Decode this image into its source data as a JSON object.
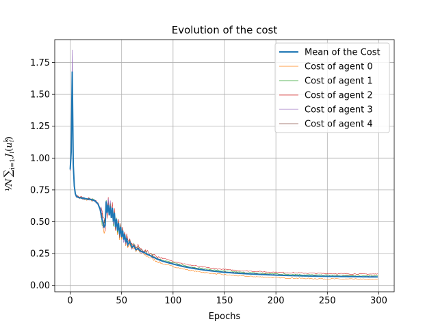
{
  "chart_data": {
    "type": "line",
    "title": "Evolution of the cost",
    "xlabel": "Epochs",
    "ylabel": "1/N Σ_{i=1} J_i(u_i^k)",
    "xlim": [
      -15,
      315
    ],
    "ylim": [
      -0.05,
      1.93
    ],
    "xticks": [
      0,
      50,
      100,
      150,
      200,
      250,
      300
    ],
    "yticks": [
      0.0,
      0.25,
      0.5,
      0.75,
      1.0,
      1.25,
      1.5,
      1.75
    ],
    "ytick_labels": [
      "0.00",
      "0.25",
      "0.50",
      "0.75",
      "1.00",
      "1.25",
      "1.50",
      "1.75"
    ],
    "grid": true,
    "legend_position": "top-right",
    "mean_series": {
      "name": "Mean of the Cost",
      "color": "#1f77b4",
      "points": [
        [
          0,
          0.91
        ],
        [
          1,
          1.05
        ],
        [
          2,
          1.68
        ],
        [
          3,
          0.95
        ],
        [
          4,
          0.78
        ],
        [
          5,
          0.72
        ],
        [
          6,
          0.7
        ],
        [
          8,
          0.69
        ],
        [
          12,
          0.685
        ],
        [
          16,
          0.68
        ],
        [
          20,
          0.675
        ],
        [
          24,
          0.665
        ],
        [
          27,
          0.64
        ],
        [
          29,
          0.6
        ],
        [
          31,
          0.52
        ],
        [
          33,
          0.46
        ],
        [
          34,
          0.47
        ],
        [
          35,
          0.66
        ],
        [
          36,
          0.57
        ],
        [
          37,
          0.63
        ],
        [
          38,
          0.55
        ],
        [
          39,
          0.62
        ],
        [
          40,
          0.53
        ],
        [
          41,
          0.61
        ],
        [
          42,
          0.5
        ],
        [
          43,
          0.57
        ],
        [
          44,
          0.46
        ],
        [
          45,
          0.52
        ],
        [
          46,
          0.43
        ],
        [
          47,
          0.49
        ],
        [
          48,
          0.4
        ],
        [
          49,
          0.46
        ],
        [
          50,
          0.38
        ],
        [
          51,
          0.43
        ],
        [
          52,
          0.36
        ],
        [
          53,
          0.4
        ],
        [
          54,
          0.34
        ],
        [
          55,
          0.37
        ],
        [
          56,
          0.32
        ],
        [
          58,
          0.34
        ],
        [
          60,
          0.3
        ],
        [
          62,
          0.31
        ],
        [
          64,
          0.28
        ],
        [
          66,
          0.29
        ],
        [
          68,
          0.27
        ],
        [
          70,
          0.265
        ],
        [
          75,
          0.245
        ],
        [
          80,
          0.225
        ],
        [
          85,
          0.205
        ],
        [
          90,
          0.19
        ],
        [
          100,
          0.168
        ],
        [
          110,
          0.148
        ],
        [
          120,
          0.133
        ],
        [
          130,
          0.121
        ],
        [
          140,
          0.111
        ],
        [
          150,
          0.103
        ],
        [
          160,
          0.097
        ],
        [
          170,
          0.092
        ],
        [
          180,
          0.088
        ],
        [
          190,
          0.084
        ],
        [
          200,
          0.081
        ],
        [
          210,
          0.078
        ],
        [
          220,
          0.076
        ],
        [
          230,
          0.074
        ],
        [
          240,
          0.072
        ],
        [
          250,
          0.071
        ],
        [
          260,
          0.07
        ],
        [
          270,
          0.069
        ],
        [
          280,
          0.068
        ],
        [
          290,
          0.067
        ],
        [
          299,
          0.067
        ]
      ]
    },
    "agents": [
      {
        "name": "Cost of agent 0",
        "color": "#ff7f0e",
        "peak": 1.62,
        "tail_offset": -0.012
      },
      {
        "name": "Cost of agent 1",
        "color": "#2ca02c",
        "peak": 1.58,
        "tail_offset": 0.006
      },
      {
        "name": "Cost of agent 2",
        "color": "#d62728",
        "peak": 1.7,
        "tail_offset": 0.014
      },
      {
        "name": "Cost of agent 3",
        "color": "#9467bd",
        "peak": 1.85,
        "tail_offset": 0.0
      },
      {
        "name": "Cost of agent 4",
        "color": "#8c564b",
        "peak": 1.66,
        "tail_offset": 0.002
      }
    ]
  }
}
